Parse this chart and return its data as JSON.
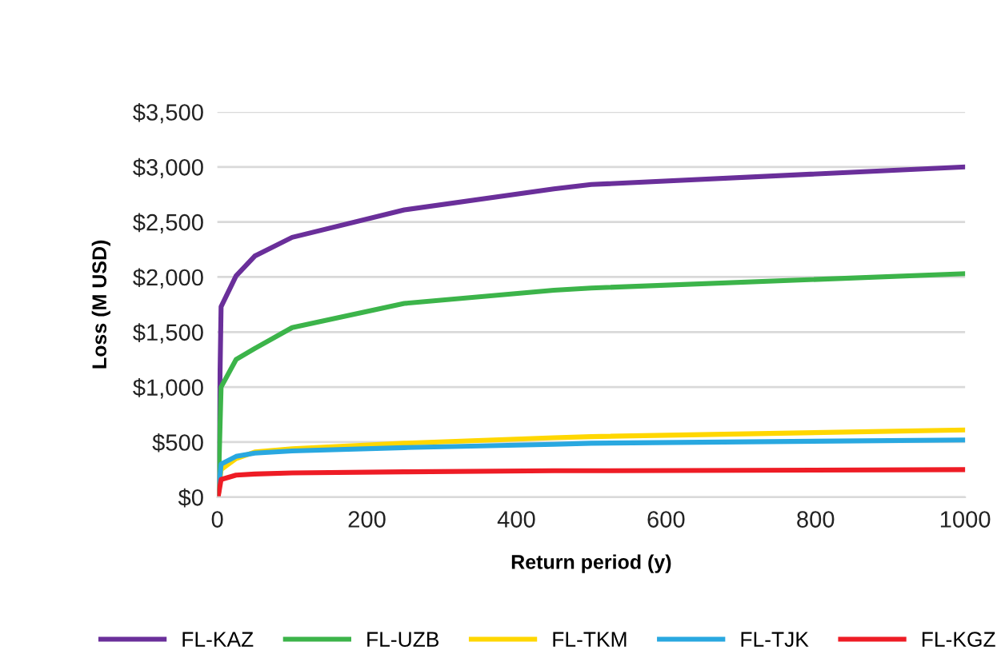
{
  "chart_data": {
    "type": "line",
    "xlabel": "Return period (y)",
    "ylabel": "Loss (M USD)",
    "xlim": [
      0,
      1000
    ],
    "xticks": [
      0,
      200,
      400,
      600,
      800,
      1000
    ],
    "ylim": [
      0,
      3500
    ],
    "yticks": [
      {
        "value": 0,
        "label": "$0"
      },
      {
        "value": 500,
        "label": "$500"
      },
      {
        "value": 1000,
        "label": "$1,000"
      },
      {
        "value": 1500,
        "label": "$1,500"
      },
      {
        "value": 2000,
        "label": "$2,000"
      },
      {
        "value": 2500,
        "label": "$2,500"
      },
      {
        "value": 3000,
        "label": "$3,000"
      },
      {
        "value": 3500,
        "label": "$3,500"
      }
    ],
    "grid": "y",
    "legend": "bottom",
    "marker": "none",
    "line_style": "solid",
    "x": [
      1,
      5,
      25,
      50,
      100,
      250,
      450,
      500,
      1000
    ],
    "series": [
      {
        "name": "FL-KAZ",
        "color": "#6a2f9a",
        "values": [
          0,
          1730,
          2010,
          2190,
          2360,
          2610,
          2800,
          2840,
          3000
        ]
      },
      {
        "name": "FL-UZB",
        "color": "#3cb44a",
        "values": [
          0,
          1000,
          1250,
          1350,
          1540,
          1760,
          1880,
          1900,
          2030
        ]
      },
      {
        "name": "FL-TKM",
        "color": "#ffd700",
        "values": [
          0,
          250,
          350,
          410,
          440,
          490,
          540,
          550,
          610
        ]
      },
      {
        "name": "FL-TJK",
        "color": "#29a8e0",
        "values": [
          0,
          300,
          370,
          400,
          420,
          450,
          480,
          490,
          520
        ]
      },
      {
        "name": "FL-KGZ",
        "color": "#ee1c25",
        "values": [
          0,
          160,
          200,
          210,
          220,
          230,
          240,
          240,
          250
        ]
      }
    ]
  }
}
